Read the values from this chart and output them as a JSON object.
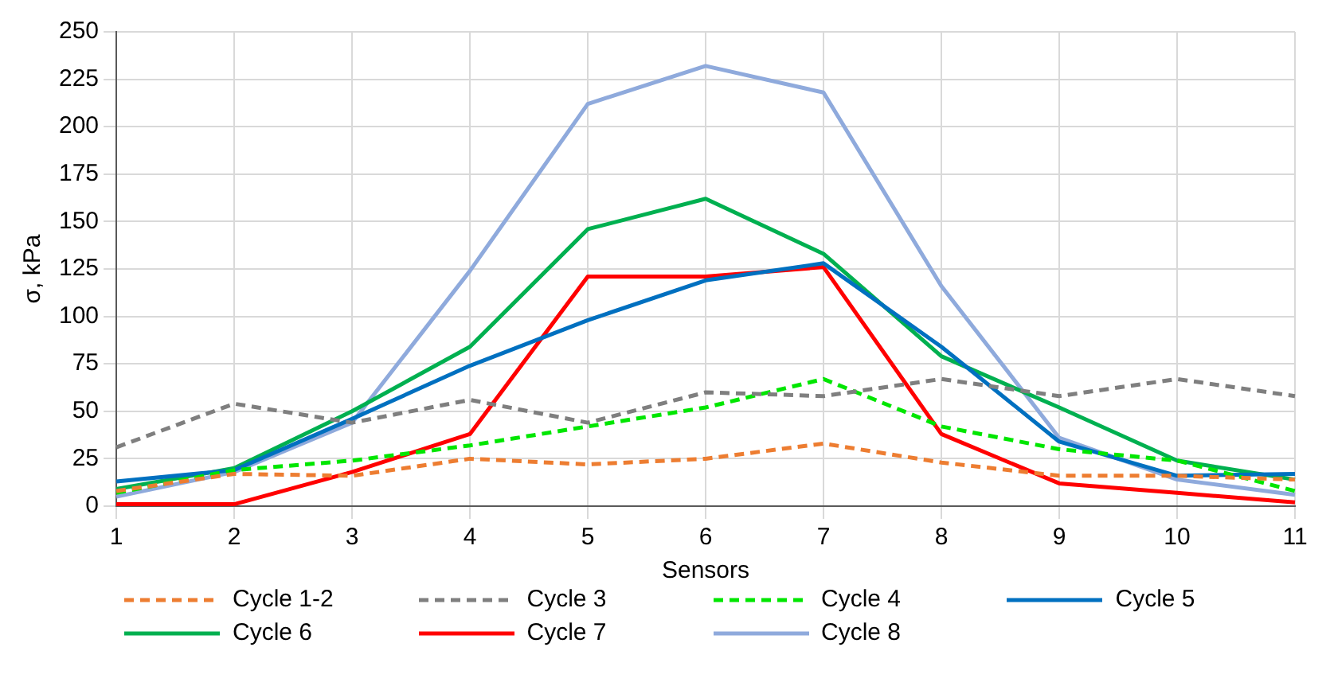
{
  "chart_data": {
    "type": "line",
    "xlabel": "Sensors",
    "ylabel": "σ, kPa",
    "categories": [
      "1",
      "2",
      "3",
      "4",
      "5",
      "6",
      "7",
      "8",
      "9",
      "10",
      "11"
    ],
    "ylim": [
      0,
      250
    ],
    "yticks": [
      0,
      25,
      50,
      75,
      100,
      125,
      150,
      175,
      200,
      225,
      250
    ],
    "grid": true,
    "legend": "bottom",
    "marker": "none",
    "series": [
      {
        "name": "Cycle 1-2",
        "color": "#ed7d31",
        "line_style": "dashed",
        "values": [
          8,
          17,
          16,
          25,
          22,
          25,
          33,
          23,
          16,
          16,
          14
        ]
      },
      {
        "name": "Cycle 3",
        "color": "#7f7f7f",
        "line_style": "dashed",
        "values": [
          31,
          54,
          44,
          56,
          44,
          60,
          58,
          67,
          58,
          67,
          58
        ]
      },
      {
        "name": "Cycle 4",
        "color": "#00e600",
        "line_style": "dashed",
        "values": [
          7,
          19,
          24,
          32,
          42,
          52,
          67,
          42,
          30,
          24,
          8
        ]
      },
      {
        "name": "Cycle 5",
        "color": "#0070c0",
        "line_style": "solid",
        "values": [
          13,
          19,
          46,
          74,
          98,
          119,
          128,
          84,
          34,
          16,
          17
        ]
      },
      {
        "name": "Cycle 6",
        "color": "#00b050",
        "line_style": "solid",
        "values": [
          9,
          20,
          50,
          84,
          146,
          162,
          133,
          79,
          52,
          24,
          14
        ]
      },
      {
        "name": "Cycle 7",
        "color": "#ff0000",
        "line_style": "solid",
        "values": [
          1,
          1,
          18,
          38,
          121,
          121,
          126,
          38,
          12,
          7,
          2
        ]
      },
      {
        "name": "Cycle 8",
        "color": "#8faadc",
        "line_style": "solid",
        "values": [
          5,
          18,
          44,
          124,
          212,
          232,
          218,
          116,
          36,
          14,
          6
        ]
      }
    ]
  }
}
